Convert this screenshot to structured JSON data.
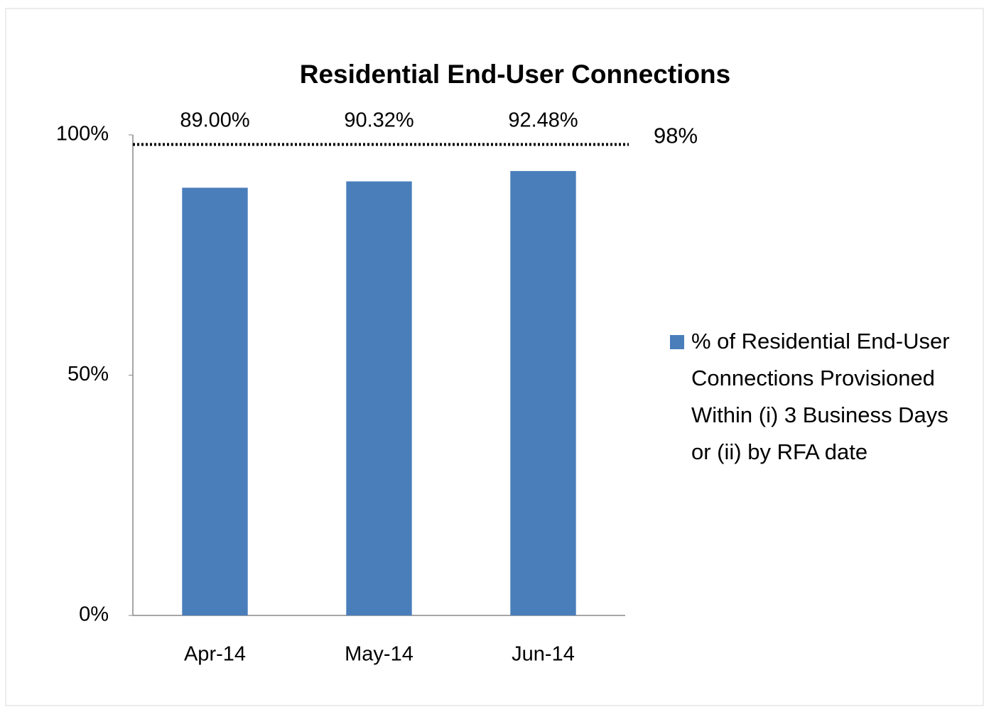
{
  "chart_data": {
    "type": "bar",
    "title": "Residential End-User Connections",
    "categories": [
      "Apr-14",
      "May-14",
      "Jun-14"
    ],
    "series": [
      {
        "name": "% of Residential End-User Connections Provisioned Within (i) 3 Business Days or (ii) by RFA date",
        "color": "#4a7ebb",
        "values": [
          89.0,
          90.32,
          92.48
        ],
        "value_labels": [
          "89.00%",
          "90.32%",
          "92.48%"
        ]
      }
    ],
    "target": {
      "value": 98,
      "label": "98%"
    },
    "ylim": [
      0,
      100
    ],
    "yticks": [
      {
        "value": 0,
        "label": "0%"
      },
      {
        "value": 50,
        "label": "50%"
      },
      {
        "value": 100,
        "label": "100%"
      }
    ],
    "grid": false,
    "legend": "right"
  }
}
